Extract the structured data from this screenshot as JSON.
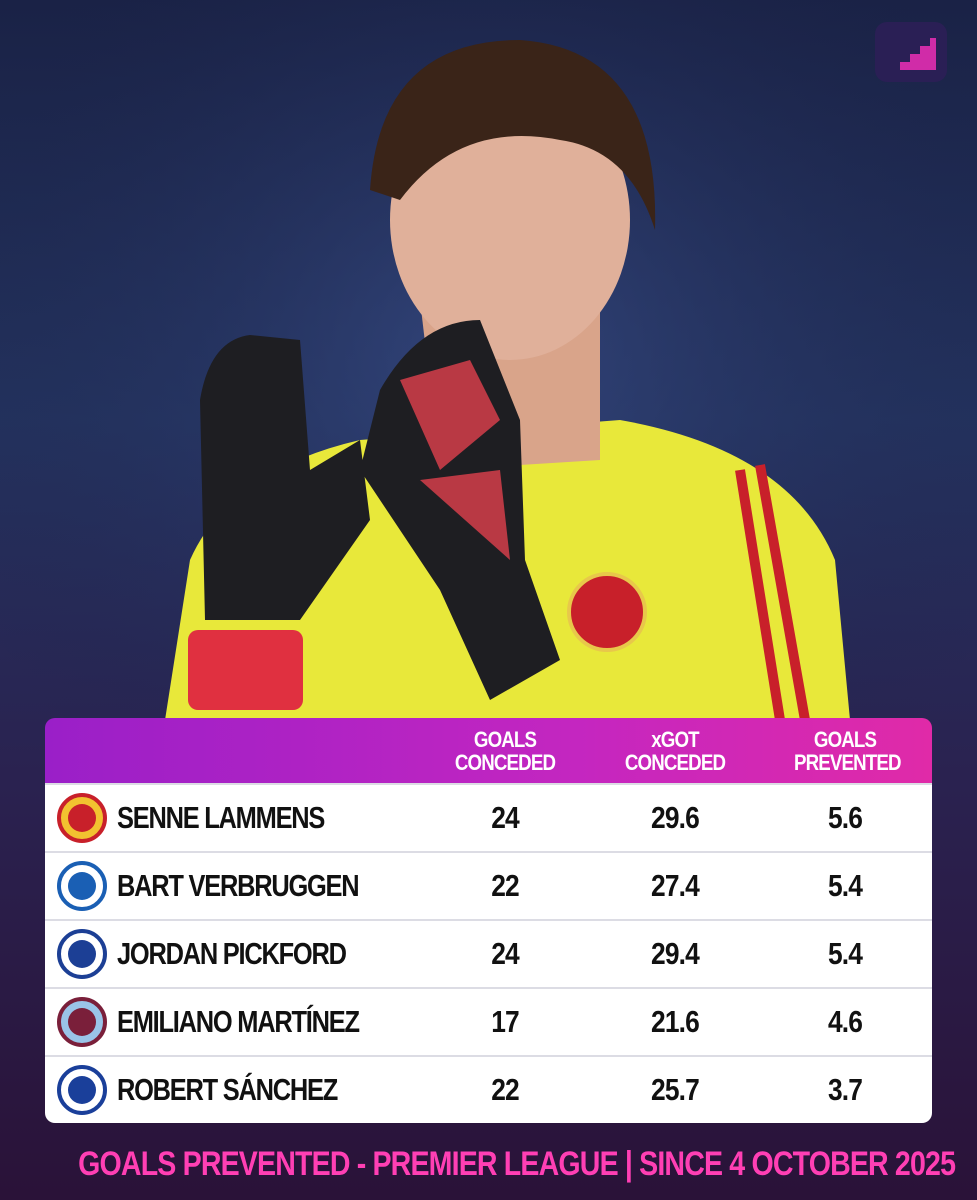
{
  "table": {
    "columns": [
      "GOALS CONCEDED",
      "xGOT CONCEDED",
      "GOALS PREVENTED"
    ],
    "rows": [
      [
        "SENNE LAMMENS",
        24,
        29.6,
        5.6
      ],
      [
        "BART VERBRUGGEN",
        22,
        27.4,
        5.4
      ],
      [
        "JORDAN PICKFORD",
        24,
        29.4,
        5.4
      ],
      [
        "EMILIANO MARTÍNEZ",
        17,
        21.6,
        4.6
      ],
      [
        "ROBERT SÁNCHEZ",
        22,
        25.7,
        3.7
      ]
    ]
  },
  "footer": {
    "caption": "GOALS PREVENTED - PREMIER LEAGUE | SINCE 4 OCTOBER 2025"
  }
}
